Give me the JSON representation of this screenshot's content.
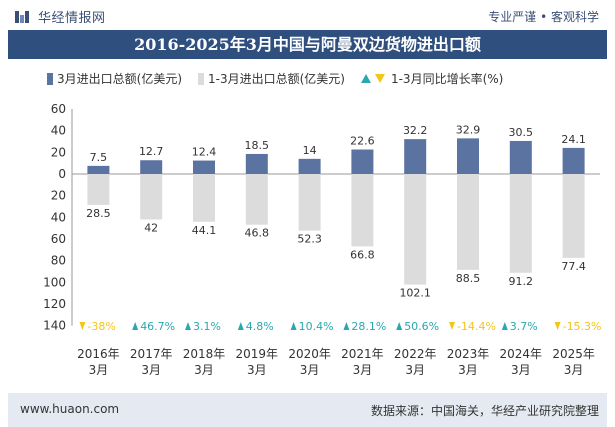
{
  "header": {
    "brand_name": "华经情报网",
    "tagline": "专业严谨 • 客观科学",
    "logo_icon": "huajing-logo-icon"
  },
  "chart_data": {
    "type": "bar",
    "title": "2016-2025年3月中国与阿曼双边货物进出口额",
    "categories": [
      "2016年\n3月",
      "2017年\n3月",
      "2018年\n3月",
      "2019年\n3月",
      "2020年\n3月",
      "2021年\n3月",
      "2022年\n3月",
      "2023年\n3月",
      "2024年\n3月",
      "2025年\n3月"
    ],
    "series": [
      {
        "name": "3月进出口总额(亿美元)",
        "color": "#5b73a0",
        "values": [
          7.5,
          12.7,
          12.4,
          18.5,
          14,
          22.6,
          32.2,
          32.9,
          30.5,
          24.1
        ]
      },
      {
        "name": "1-3月进出口总额(亿美元)",
        "color": "#dcdcdc",
        "values": [
          28.5,
          42,
          44.1,
          46.8,
          52.3,
          66.8,
          102.1,
          88.5,
          91.2,
          77.4
        ]
      },
      {
        "name": "1-3月同比增长率(%)",
        "values": [
          "-38%",
          "46.7%",
          "3.1%",
          "4.8%",
          "10.4%",
          "28.1%",
          "50.6%",
          "-14.4%",
          "3.7%",
          "-15.3%"
        ],
        "direction": [
          "down",
          "up",
          "up",
          "up",
          "up",
          "up",
          "up",
          "down",
          "up",
          "down"
        ]
      }
    ],
    "y_ticks_upper": [
      60,
      40,
      20,
      0
    ],
    "y_ticks_lower": [
      20,
      40,
      60,
      80,
      100,
      120,
      140
    ],
    "ylim_upper": [
      0,
      60
    ],
    "ylim_lower": [
      0,
      140
    ],
    "colors": {
      "up": "#2aa8b0",
      "down": "#f5c518",
      "bar_dark": "#5b73a0",
      "bar_light": "#dcdcdc"
    },
    "grid": false,
    "legend_position": "top-left"
  },
  "footer": {
    "url": "www.huaon.com",
    "source": "数据来源：中国海关，华经产业研究院整理"
  }
}
